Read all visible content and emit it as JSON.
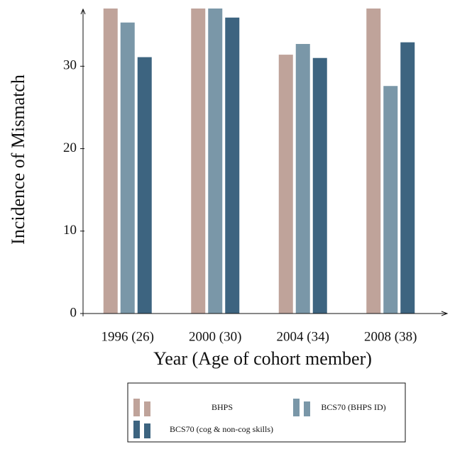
{
  "chart_data": {
    "type": "bar",
    "y_label": "Incidence of Mismatch",
    "x_label": "Year (Age of cohort member)",
    "categories": [
      "1996 (26)",
      "2000 (30)",
      "2004 (34)",
      "2008 (38)"
    ],
    "series": [
      {
        "name": "BHPS",
        "color": "#bfa39a",
        "values": [
          37,
          37,
          31.4,
          37
        ]
      },
      {
        "name": "BCS70 (BHPS ID)",
        "color": "#7a97a8",
        "values": [
          35.3,
          37,
          32.7,
          27.6
        ]
      },
      {
        "name": "BCS70 (cog & non-cog skills)",
        "color": "#3d6480",
        "values": [
          31.1,
          35.9,
          31.0,
          32.9
        ]
      }
    ],
    "ylim": [
      0,
      37
    ],
    "yticks": [
      0,
      10,
      20,
      30
    ],
    "grid": false
  }
}
